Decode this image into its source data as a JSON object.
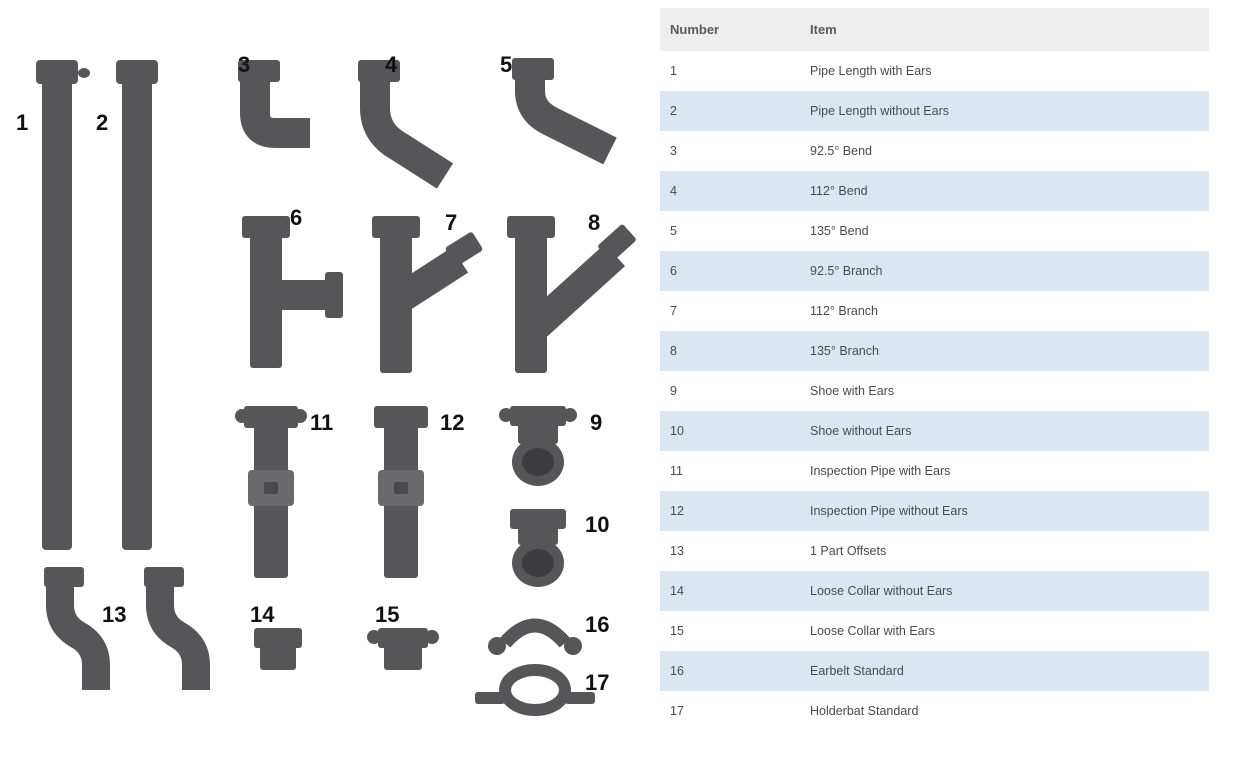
{
  "table": {
    "header_bg": "#eeeeee",
    "stripe_bg": "#dbe7f0",
    "text_color": "#4a4a4a",
    "columns": [
      "Number",
      "Item"
    ],
    "rows": [
      {
        "num": "1",
        "item": "Pipe Length with Ears"
      },
      {
        "num": "2",
        "item": "Pipe Length without Ears"
      },
      {
        "num": "3",
        "item": "92.5° Bend"
      },
      {
        "num": "4",
        "item": "112° Bend"
      },
      {
        "num": "5",
        "item": "135° Bend"
      },
      {
        "num": "6",
        "item": "92.5° Branch"
      },
      {
        "num": "7",
        "item": "112° Branch"
      },
      {
        "num": "8",
        "item": "135° Branch"
      },
      {
        "num": "9",
        "item": "Shoe with Ears"
      },
      {
        "num": "10",
        "item": "Shoe without Ears"
      },
      {
        "num": "11",
        "item": "Inspection Pipe with Ears"
      },
      {
        "num": "12",
        "item": "Inspection Pipe without Ears"
      },
      {
        "num": "13",
        "item": "1 Part Offsets"
      },
      {
        "num": "14",
        "item": "Loose Collar without Ears"
      },
      {
        "num": "15",
        "item": "Loose Collar with Ears"
      },
      {
        "num": "16",
        "item": "Earbelt Standard"
      },
      {
        "num": "17",
        "item": "Holderbat Standard"
      }
    ]
  },
  "diagram": {
    "pipe_color": "#565658",
    "pipe_highlight": "#6a6a6c",
    "background": "#ffffff",
    "labels": {
      "1": "1",
      "2": "2",
      "3": "3",
      "4": "4",
      "5": "5",
      "6": "6",
      "7": "7",
      "8": "8",
      "9": "9",
      "10": "10",
      "11": "11",
      "12": "12",
      "13": "13",
      "14": "14",
      "15": "15",
      "16": "16",
      "17": "17"
    }
  }
}
